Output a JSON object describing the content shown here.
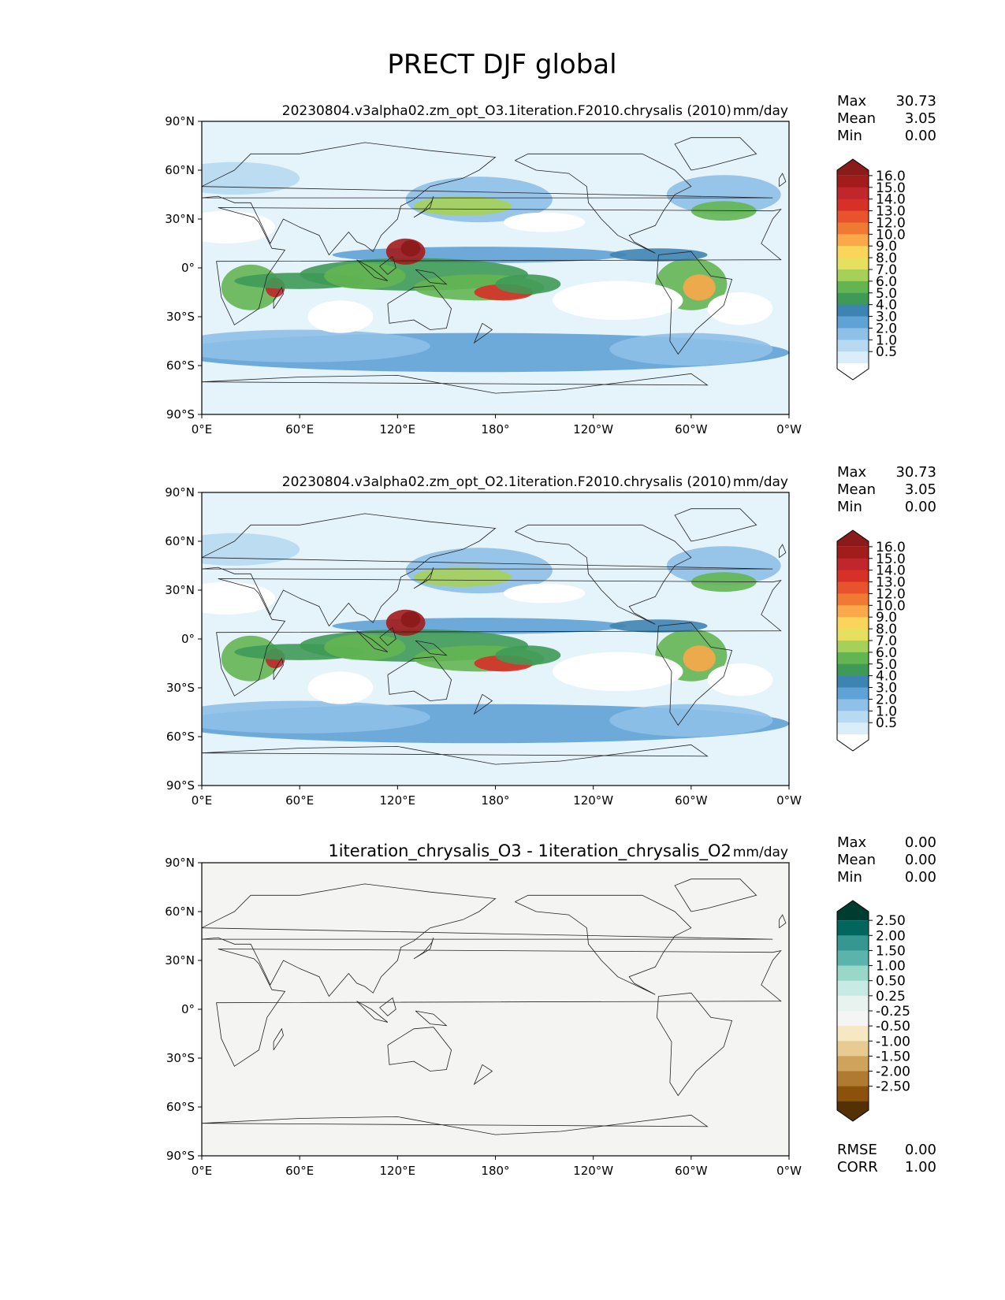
{
  "figure": {
    "title": "PRECT DJF global"
  },
  "chart_data": [
    {
      "type": "heatmap",
      "title": "20230804.v3alpha02.zm_opt_O3.1iteration.F2010.chrysalis (2010)",
      "units": "mm/day",
      "stats": {
        "max_label": "Max",
        "max": "30.73",
        "mean_label": "Mean",
        "mean": "3.05",
        "min_label": "Min",
        "min": "0.00"
      },
      "x_ticks": [
        "0°E",
        "60°E",
        "120°E",
        "180°",
        "120°W",
        "60°W",
        "0°W"
      ],
      "y_ticks": [
        "90°N",
        "60°N",
        "30°N",
        "0°",
        "30°S",
        "60°S",
        "90°S"
      ],
      "xlim": [
        0,
        360
      ],
      "ylim": [
        -90,
        90
      ],
      "colorbar": {
        "labels": [
          "16.0",
          "15.0",
          "14.0",
          "13.0",
          "12.0",
          "10.0",
          "9.0",
          "8.0",
          "7.0",
          "6.0",
          "5.0",
          "4.0",
          "3.0",
          "2.0",
          "1.0",
          "0.5"
        ],
        "colors": [
          "#8b1a1a",
          "#a31c1c",
          "#c0262b",
          "#d73027",
          "#e8532e",
          "#f07a33",
          "#f9a94a",
          "#fbd45a",
          "#e6e05e",
          "#a6d05a",
          "#63b552",
          "#3f9a57",
          "#3e84b2",
          "#5fa2d6",
          "#8ec0e8",
          "#b7d9f1",
          "#daeefa",
          "#ffffff"
        ]
      }
    },
    {
      "type": "heatmap",
      "title": "20230804.v3alpha02.zm_opt_O2.1iteration.F2010.chrysalis (2010)",
      "units": "mm/day",
      "stats": {
        "max_label": "Max",
        "max": "30.73",
        "mean_label": "Mean",
        "mean": "3.05",
        "min_label": "Min",
        "min": "0.00"
      },
      "x_ticks": [
        "0°E",
        "60°E",
        "120°E",
        "180°",
        "120°W",
        "60°W",
        "0°W"
      ],
      "y_ticks": [
        "90°N",
        "60°N",
        "30°N",
        "0°",
        "30°S",
        "60°S",
        "90°S"
      ],
      "xlim": [
        0,
        360
      ],
      "ylim": [
        -90,
        90
      ],
      "colorbar": {
        "labels": [
          "16.0",
          "15.0",
          "14.0",
          "13.0",
          "12.0",
          "10.0",
          "9.0",
          "8.0",
          "7.0",
          "6.0",
          "5.0",
          "4.0",
          "3.0",
          "2.0",
          "1.0",
          "0.5"
        ],
        "colors": [
          "#8b1a1a",
          "#a31c1c",
          "#c0262b",
          "#d73027",
          "#e8532e",
          "#f07a33",
          "#f9a94a",
          "#fbd45a",
          "#e6e05e",
          "#a6d05a",
          "#63b552",
          "#3f9a57",
          "#3e84b2",
          "#5fa2d6",
          "#8ec0e8",
          "#b7d9f1",
          "#daeefa",
          "#ffffff"
        ]
      }
    },
    {
      "type": "heatmap",
      "title": "1iteration_chrysalis_O3 - 1iteration_chrysalis_O2",
      "units": "mm/day",
      "stats": {
        "max_label": "Max",
        "max": "0.00",
        "mean_label": "Mean",
        "mean": "0.00",
        "min_label": "Min",
        "min": "0.00"
      },
      "extra_stats": {
        "rmse_label": "RMSE",
        "rmse": "0.00",
        "corr_label": "CORR",
        "corr": "1.00"
      },
      "x_ticks": [
        "0°E",
        "60°E",
        "120°E",
        "180°",
        "120°W",
        "60°W",
        "0°W"
      ],
      "y_ticks": [
        "90°N",
        "60°N",
        "30°N",
        "0°",
        "30°S",
        "60°S",
        "90°S"
      ],
      "xlim": [
        0,
        360
      ],
      "ylim": [
        -90,
        90
      ],
      "field_color": "#f4f4f2",
      "colorbar": {
        "labels": [
          "2.50",
          "2.00",
          "1.50",
          "1.00",
          "0.50",
          "0.25",
          "-0.25",
          "-0.50",
          "-1.00",
          "-1.50",
          "-2.00",
          "-2.50"
        ],
        "colors": [
          "#003c30",
          "#01665e",
          "#35978f",
          "#5ab4ac",
          "#99d8c9",
          "#c7eae5",
          "#e8f3f0",
          "#f5f5f5",
          "#f6e8c3",
          "#e6cb92",
          "#cfa35c",
          "#b07a30",
          "#8c510a",
          "#543005"
        ]
      }
    }
  ]
}
